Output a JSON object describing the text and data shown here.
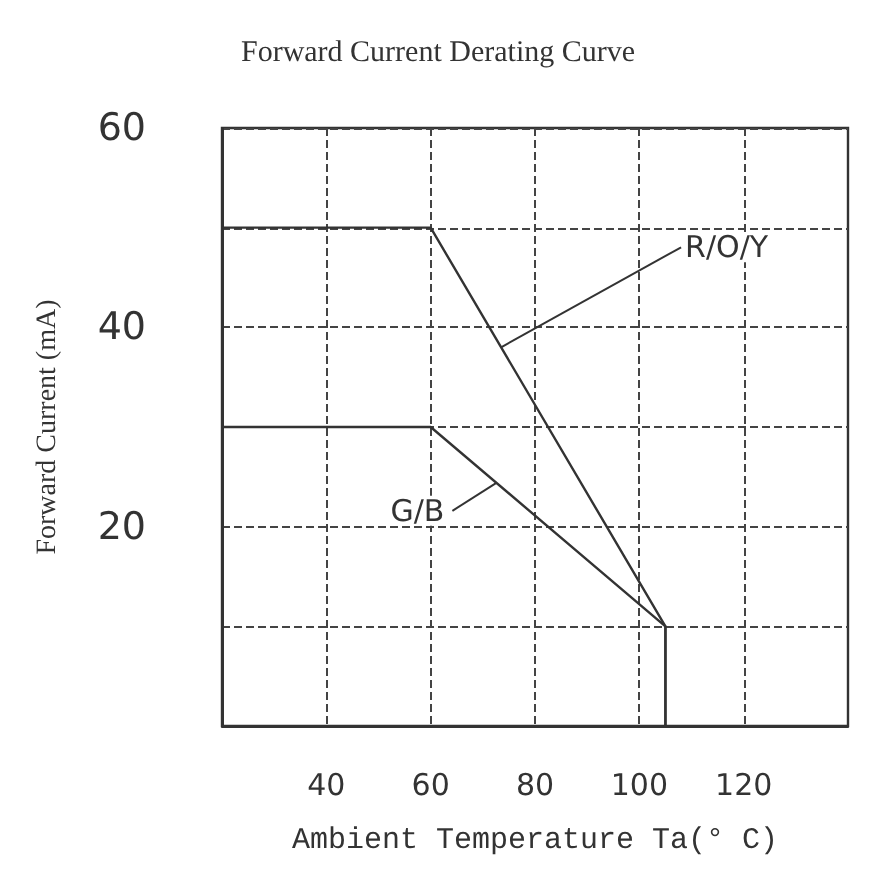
{
  "chart_data": {
    "type": "line",
    "title": "Forward Current Derating Curve",
    "xlabel": "Ambient Temperature Ta(° C)",
    "ylabel": "Forward Current (mA)",
    "xlim": [
      20,
      140
    ],
    "xticks": [
      40,
      60,
      80,
      100,
      120
    ],
    "ylim": [
      0,
      60
    ],
    "yticks": [
      {
        "value": 10,
        "label": null
      },
      20,
      {
        "value": 30,
        "label": null
      },
      40,
      {
        "value": 50,
        "label": null
      },
      60
    ],
    "grid": true,
    "marker": "none",
    "line_style": "solid",
    "series": [
      {
        "name": "R/O/Y",
        "color": "#333333",
        "x": [
          20,
          60,
          105,
          105
        ],
        "values": [
          50,
          50,
          10,
          0
        ]
      },
      {
        "name": "G/B",
        "color": "#333333",
        "x": [
          20,
          60,
          105,
          105
        ],
        "values": [
          30,
          30,
          10,
          0
        ]
      }
    ]
  }
}
